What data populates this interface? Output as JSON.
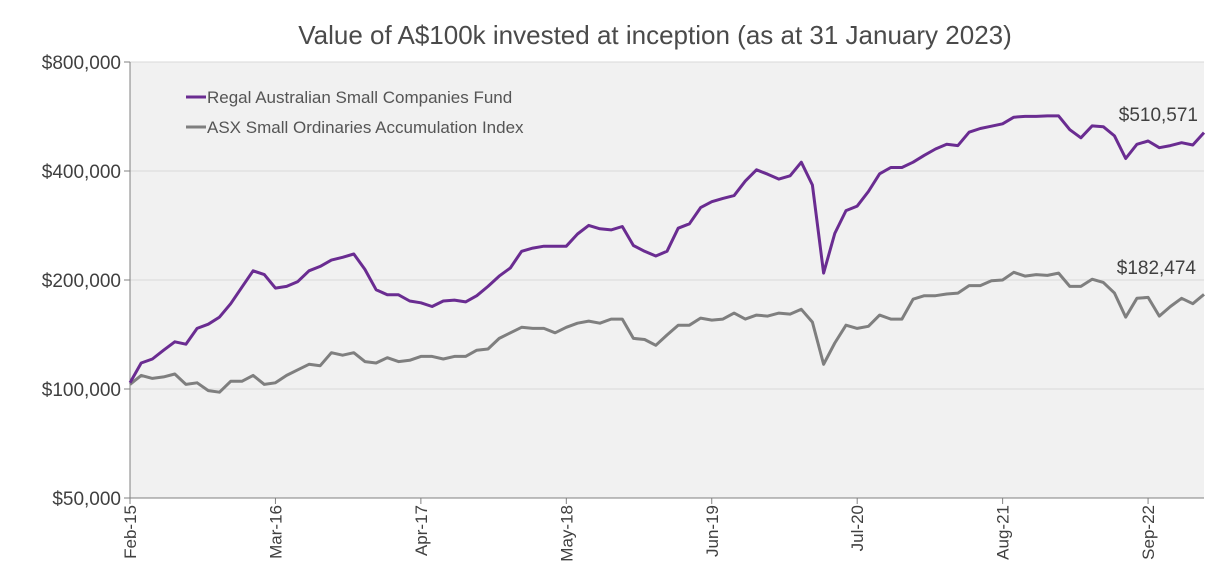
{
  "chart_data": {
    "type": "line",
    "title": "Value of A$100k invested at inception (as at 31 January 2023)",
    "xlabel": "",
    "ylabel": "",
    "y_scale": "log",
    "ylim": [
      50000,
      800000
    ],
    "y_ticks": [
      {
        "value": 50000,
        "label": "$50,000"
      },
      {
        "value": 100000,
        "label": "$100,000"
      },
      {
        "value": 200000,
        "label": "$200,000"
      },
      {
        "value": 400000,
        "label": "$400,000"
      },
      {
        "value": 800000,
        "label": "$800,000"
      }
    ],
    "x_tick_labels": [
      "Feb-15",
      "Mar-16",
      "Apr-17",
      "May-18",
      "Jun-19",
      "Jul-20",
      "Aug-21",
      "Sep-22"
    ],
    "x_tick_index": [
      0,
      13,
      26,
      39,
      52,
      65,
      78,
      91
    ],
    "x_start": "Feb-15",
    "x_end": "Jan-23",
    "grid": "horizontal",
    "legend_position": "top-left",
    "series": [
      {
        "name": "Regal Australian Small Companies Fund",
        "color": "#6a2c91",
        "end_label": "$510,571",
        "values": [
          104000,
          118000,
          121000,
          128000,
          135000,
          133000,
          147000,
          151000,
          158000,
          172000,
          191000,
          212000,
          207000,
          190000,
          192000,
          198000,
          212000,
          218000,
          227000,
          231000,
          236000,
          214000,
          188000,
          182000,
          182000,
          175000,
          173000,
          169000,
          175000,
          176000,
          174000,
          181000,
          192000,
          205000,
          216000,
          240000,
          245000,
          248000,
          248000,
          248000,
          268000,
          283000,
          277000,
          275000,
          281000,
          249000,
          240000,
          233000,
          240000,
          278000,
          286000,
          317000,
          329000,
          336000,
          342000,
          375000,
          403000,
          392000,
          380000,
          388000,
          423000,
          366000,
          209000,
          269000,
          311000,
          320000,
          351000,
          393000,
          409000,
          409000,
          423000,
          442000,
          460000,
          474000,
          470000,
          512000,
          524000,
          532000,
          540000,
          563000,
          566000,
          566000,
          568000,
          568000,
          520000,
          494000,
          533000,
          530000,
          500000,
          433000,
          474000,
          484000,
          464000,
          470000,
          479000,
          472000,
          510571
        ]
      },
      {
        "name": "ASX Small Ordinaries Accumulation Index",
        "color": "#7f7f7f",
        "end_label": "$182,474",
        "values": [
          103000,
          109000,
          107000,
          108000,
          110000,
          103000,
          104000,
          99000,
          98000,
          105000,
          105000,
          109000,
          103000,
          104000,
          109000,
          113000,
          117000,
          116000,
          126000,
          124000,
          126000,
          119000,
          118000,
          122000,
          119000,
          120000,
          123000,
          123000,
          121000,
          123000,
          123000,
          128000,
          129000,
          138000,
          143000,
          148000,
          147000,
          147000,
          143000,
          148000,
          152000,
          154000,
          152000,
          156000,
          156000,
          138000,
          137000,
          132000,
          141000,
          150000,
          150000,
          157000,
          155000,
          156000,
          162000,
          156000,
          160000,
          159000,
          162000,
          161000,
          166000,
          153000,
          117000,
          134000,
          150000,
          147000,
          149000,
          160000,
          156000,
          156000,
          177000,
          181000,
          181000,
          183000,
          184000,
          193000,
          193000,
          199000,
          200000,
          210000,
          205000,
          207000,
          206000,
          209000,
          192000,
          192000,
          201000,
          197000,
          184000,
          158000,
          178000,
          179000,
          159000,
          169000,
          178000,
          172000,
          182474
        ]
      }
    ]
  }
}
